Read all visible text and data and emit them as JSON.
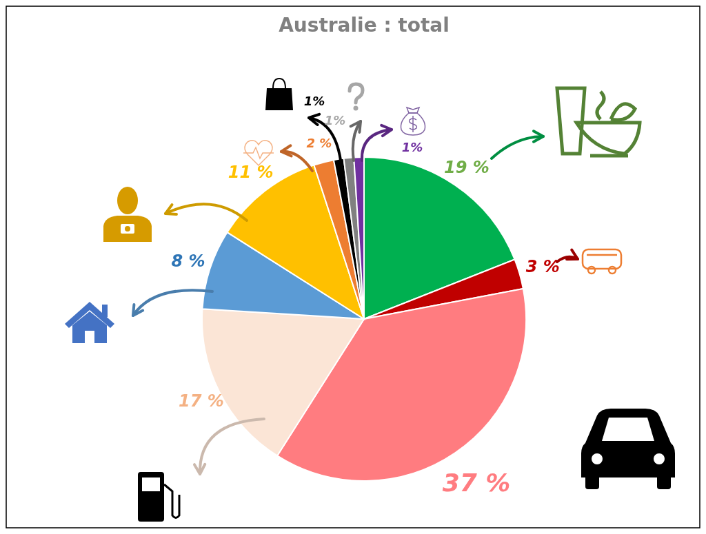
{
  "chart_data": {
    "type": "pie",
    "title": "Australie : total",
    "categories": [
      null,
      null,
      null,
      null,
      null,
      null,
      null,
      null,
      null,
      null
    ],
    "values": [
      19,
      3,
      37,
      17,
      8,
      11,
      2,
      1,
      1,
      1
    ],
    "colors": [
      "#00b050",
      "#c00000",
      "#ff7c80",
      "#fbe5d6",
      "#5b9bd5",
      "#ffc000",
      "#ed7d31",
      "#000000",
      "#808080",
      "#7030a0"
    ],
    "value_labels": [
      "19 %",
      "3 %",
      "37 %",
      "17 %",
      "8 %",
      "11 %",
      "2 %",
      "1%",
      "1%",
      "1%"
    ]
  }
}
